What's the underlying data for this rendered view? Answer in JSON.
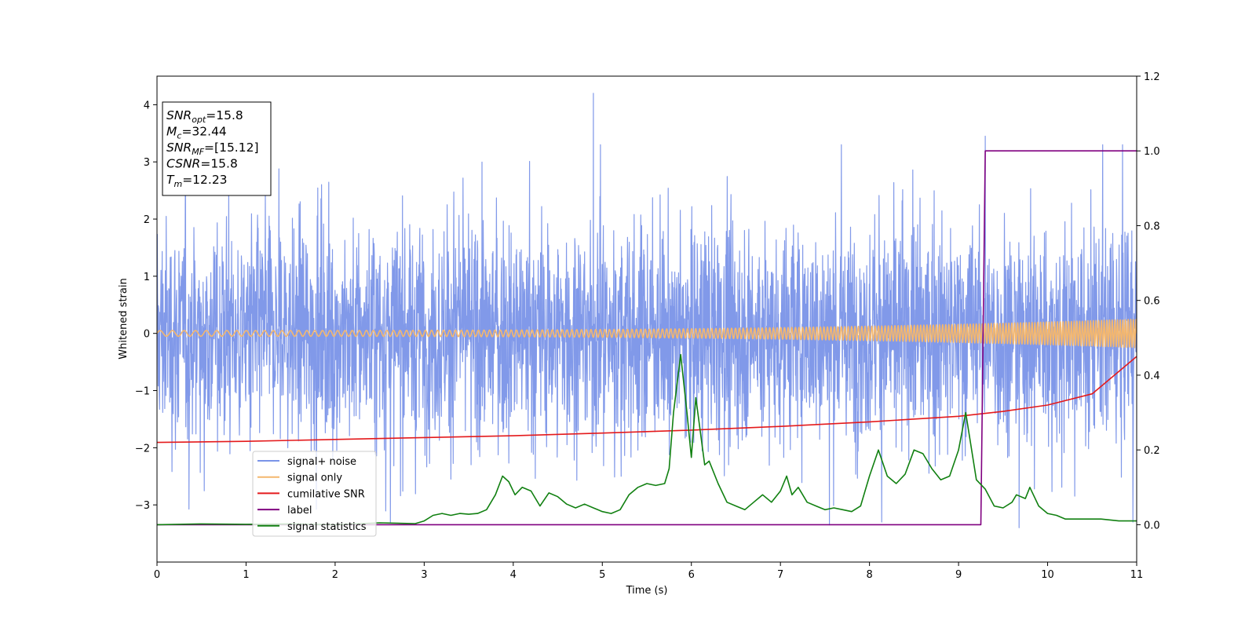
{
  "chart_data": {
    "type": "line",
    "xlabel": "Time (s)",
    "ylabel": "Whitened strain",
    "xlim": [
      0,
      11
    ],
    "ylim_left": [
      -4,
      4.5
    ],
    "ylim_right": [
      -0.1,
      1.2
    ],
    "xticks": [
      "0",
      "1",
      "2",
      "3",
      "4",
      "5",
      "6",
      "7",
      "8",
      "9",
      "10",
      "11"
    ],
    "yticks_left": [
      "−3",
      "−2",
      "−1",
      "0",
      "1",
      "2",
      "3",
      "4"
    ],
    "yticks_right": [
      "0.0",
      "0.2",
      "0.4",
      "0.6",
      "0.8",
      "1.0",
      "1.2"
    ],
    "grid": false,
    "legend_placement": "lower-left",
    "info_box": {
      "lines": [
        {
          "base": "SNR",
          "sub": "opt",
          "value": "=15.8"
        },
        {
          "base": "M",
          "sub": "c",
          "value": "=32.44"
        },
        {
          "base": "SNR",
          "sub": "MF",
          "value": "=[15.12]"
        },
        {
          "base": "CSNR",
          "sub": "",
          "value": "=15.8"
        },
        {
          "base": "T",
          "sub": "m",
          "value": "=12.23"
        }
      ]
    },
    "series": [
      {
        "name": "signal+ noise",
        "axis": "left",
        "color": "#7a94e8",
        "kind": "noise",
        "approx_range": [
          -3.4,
          4.2
        ],
        "notable_peaks": [
          {
            "x": 4.9,
            "y": 4.2
          },
          {
            "x": 9.3,
            "y": 3.45
          },
          {
            "x": 7.55,
            "y": -3.35
          },
          {
            "x": 9.68,
            "y": -3.4
          }
        ]
      },
      {
        "name": "signal only",
        "axis": "left",
        "color": "#f4b76e",
        "kind": "chirp",
        "amplitude_start": 0.05,
        "amplitude_end": 0.25
      },
      {
        "name": "cumilative SNR",
        "axis": "right",
        "color": "#e41a1c",
        "x": [
          0,
          1,
          2,
          3,
          4,
          5,
          6,
          7,
          8,
          9,
          9.5,
          10,
          10.5,
          11
        ],
        "values": [
          0.22,
          0.223,
          0.228,
          0.233,
          0.238,
          0.245,
          0.253,
          0.263,
          0.275,
          0.29,
          0.303,
          0.32,
          0.35,
          0.45
        ]
      },
      {
        "name": "label",
        "axis": "right",
        "color": "#800080",
        "x": [
          0,
          9.25,
          9.3,
          11
        ],
        "values": [
          0.0,
          0.0,
          1.0,
          1.0
        ]
      },
      {
        "name": "signal statistics",
        "axis": "right",
        "color": "#118011",
        "x": [
          0,
          0.5,
          1,
          1.5,
          2,
          2.5,
          2.9,
          3.0,
          3.1,
          3.2,
          3.3,
          3.4,
          3.5,
          3.6,
          3.7,
          3.8,
          3.88,
          3.95,
          4.02,
          4.1,
          4.2,
          4.25,
          4.3,
          4.4,
          4.5,
          4.6,
          4.7,
          4.8,
          4.9,
          5.0,
          5.1,
          5.2,
          5.3,
          5.4,
          5.5,
          5.6,
          5.7,
          5.75,
          5.8,
          5.88,
          5.95,
          6.0,
          6.05,
          6.15,
          6.2,
          6.3,
          6.4,
          6.5,
          6.6,
          6.7,
          6.8,
          6.9,
          7.0,
          7.07,
          7.13,
          7.2,
          7.3,
          7.4,
          7.5,
          7.6,
          7.7,
          7.8,
          7.9,
          8.0,
          8.1,
          8.2,
          8.3,
          8.4,
          8.5,
          8.6,
          8.7,
          8.8,
          8.9,
          9.0,
          9.08,
          9.2,
          9.3,
          9.4,
          9.5,
          9.6,
          9.65,
          9.75,
          9.8,
          9.9,
          10.0,
          10.1,
          10.2,
          10.4,
          10.6,
          10.8,
          11
        ],
        "values": [
          0.0,
          0.002,
          0.001,
          0.002,
          0.0,
          0.005,
          0.003,
          0.01,
          0.025,
          0.03,
          0.025,
          0.03,
          0.028,
          0.03,
          0.04,
          0.08,
          0.13,
          0.115,
          0.08,
          0.1,
          0.09,
          0.07,
          0.05,
          0.085,
          0.075,
          0.055,
          0.045,
          0.055,
          0.045,
          0.035,
          0.03,
          0.04,
          0.08,
          0.1,
          0.11,
          0.105,
          0.11,
          0.15,
          0.3,
          0.455,
          0.3,
          0.18,
          0.34,
          0.16,
          0.17,
          0.11,
          0.06,
          0.05,
          0.04,
          0.06,
          0.08,
          0.06,
          0.09,
          0.13,
          0.08,
          0.1,
          0.06,
          0.05,
          0.04,
          0.045,
          0.04,
          0.035,
          0.05,
          0.13,
          0.2,
          0.13,
          0.11,
          0.135,
          0.2,
          0.19,
          0.15,
          0.12,
          0.13,
          0.2,
          0.3,
          0.12,
          0.095,
          0.05,
          0.045,
          0.06,
          0.08,
          0.07,
          0.1,
          0.05,
          0.03,
          0.025,
          0.015,
          0.015,
          0.015,
          0.01,
          0.01
        ]
      }
    ]
  }
}
